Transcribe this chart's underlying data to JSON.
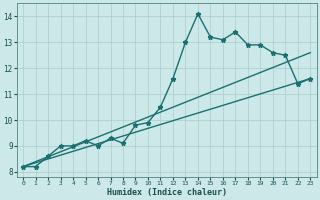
{
  "title": "",
  "xlabel": "Humidex (Indice chaleur)",
  "ylabel": "",
  "bg_color": "#cce8e8",
  "grid_color": "#aacccc",
  "line_color": "#1a7070",
  "xlim": [
    -0.5,
    23.5
  ],
  "ylim": [
    7.8,
    14.5
  ],
  "xticks": [
    0,
    1,
    2,
    3,
    4,
    5,
    6,
    7,
    8,
    9,
    10,
    11,
    12,
    13,
    14,
    15,
    16,
    17,
    18,
    19,
    20,
    21,
    22,
    23
  ],
  "yticks": [
    8,
    9,
    10,
    11,
    12,
    13,
    14
  ],
  "line1_x": [
    0,
    1,
    2,
    3,
    4,
    5,
    6,
    7,
    8,
    9,
    10,
    11,
    12,
    13,
    14,
    15,
    16,
    17,
    18,
    19,
    20,
    21,
    22,
    23
  ],
  "line1_y": [
    8.2,
    8.2,
    8.6,
    9.0,
    9.0,
    9.2,
    9.0,
    9.3,
    9.1,
    9.8,
    9.9,
    10.5,
    11.6,
    13.0,
    14.1,
    13.2,
    13.1,
    13.4,
    12.9,
    12.9,
    12.6,
    12.5,
    11.4,
    11.6
  ],
  "line2_x": [
    0,
    23
  ],
  "line2_y": [
    8.2,
    11.6
  ],
  "line3_x": [
    0,
    23
  ],
  "line3_y": [
    8.2,
    12.6
  ],
  "marker": "*",
  "markersize": 3.5,
  "linewidth": 1.0
}
